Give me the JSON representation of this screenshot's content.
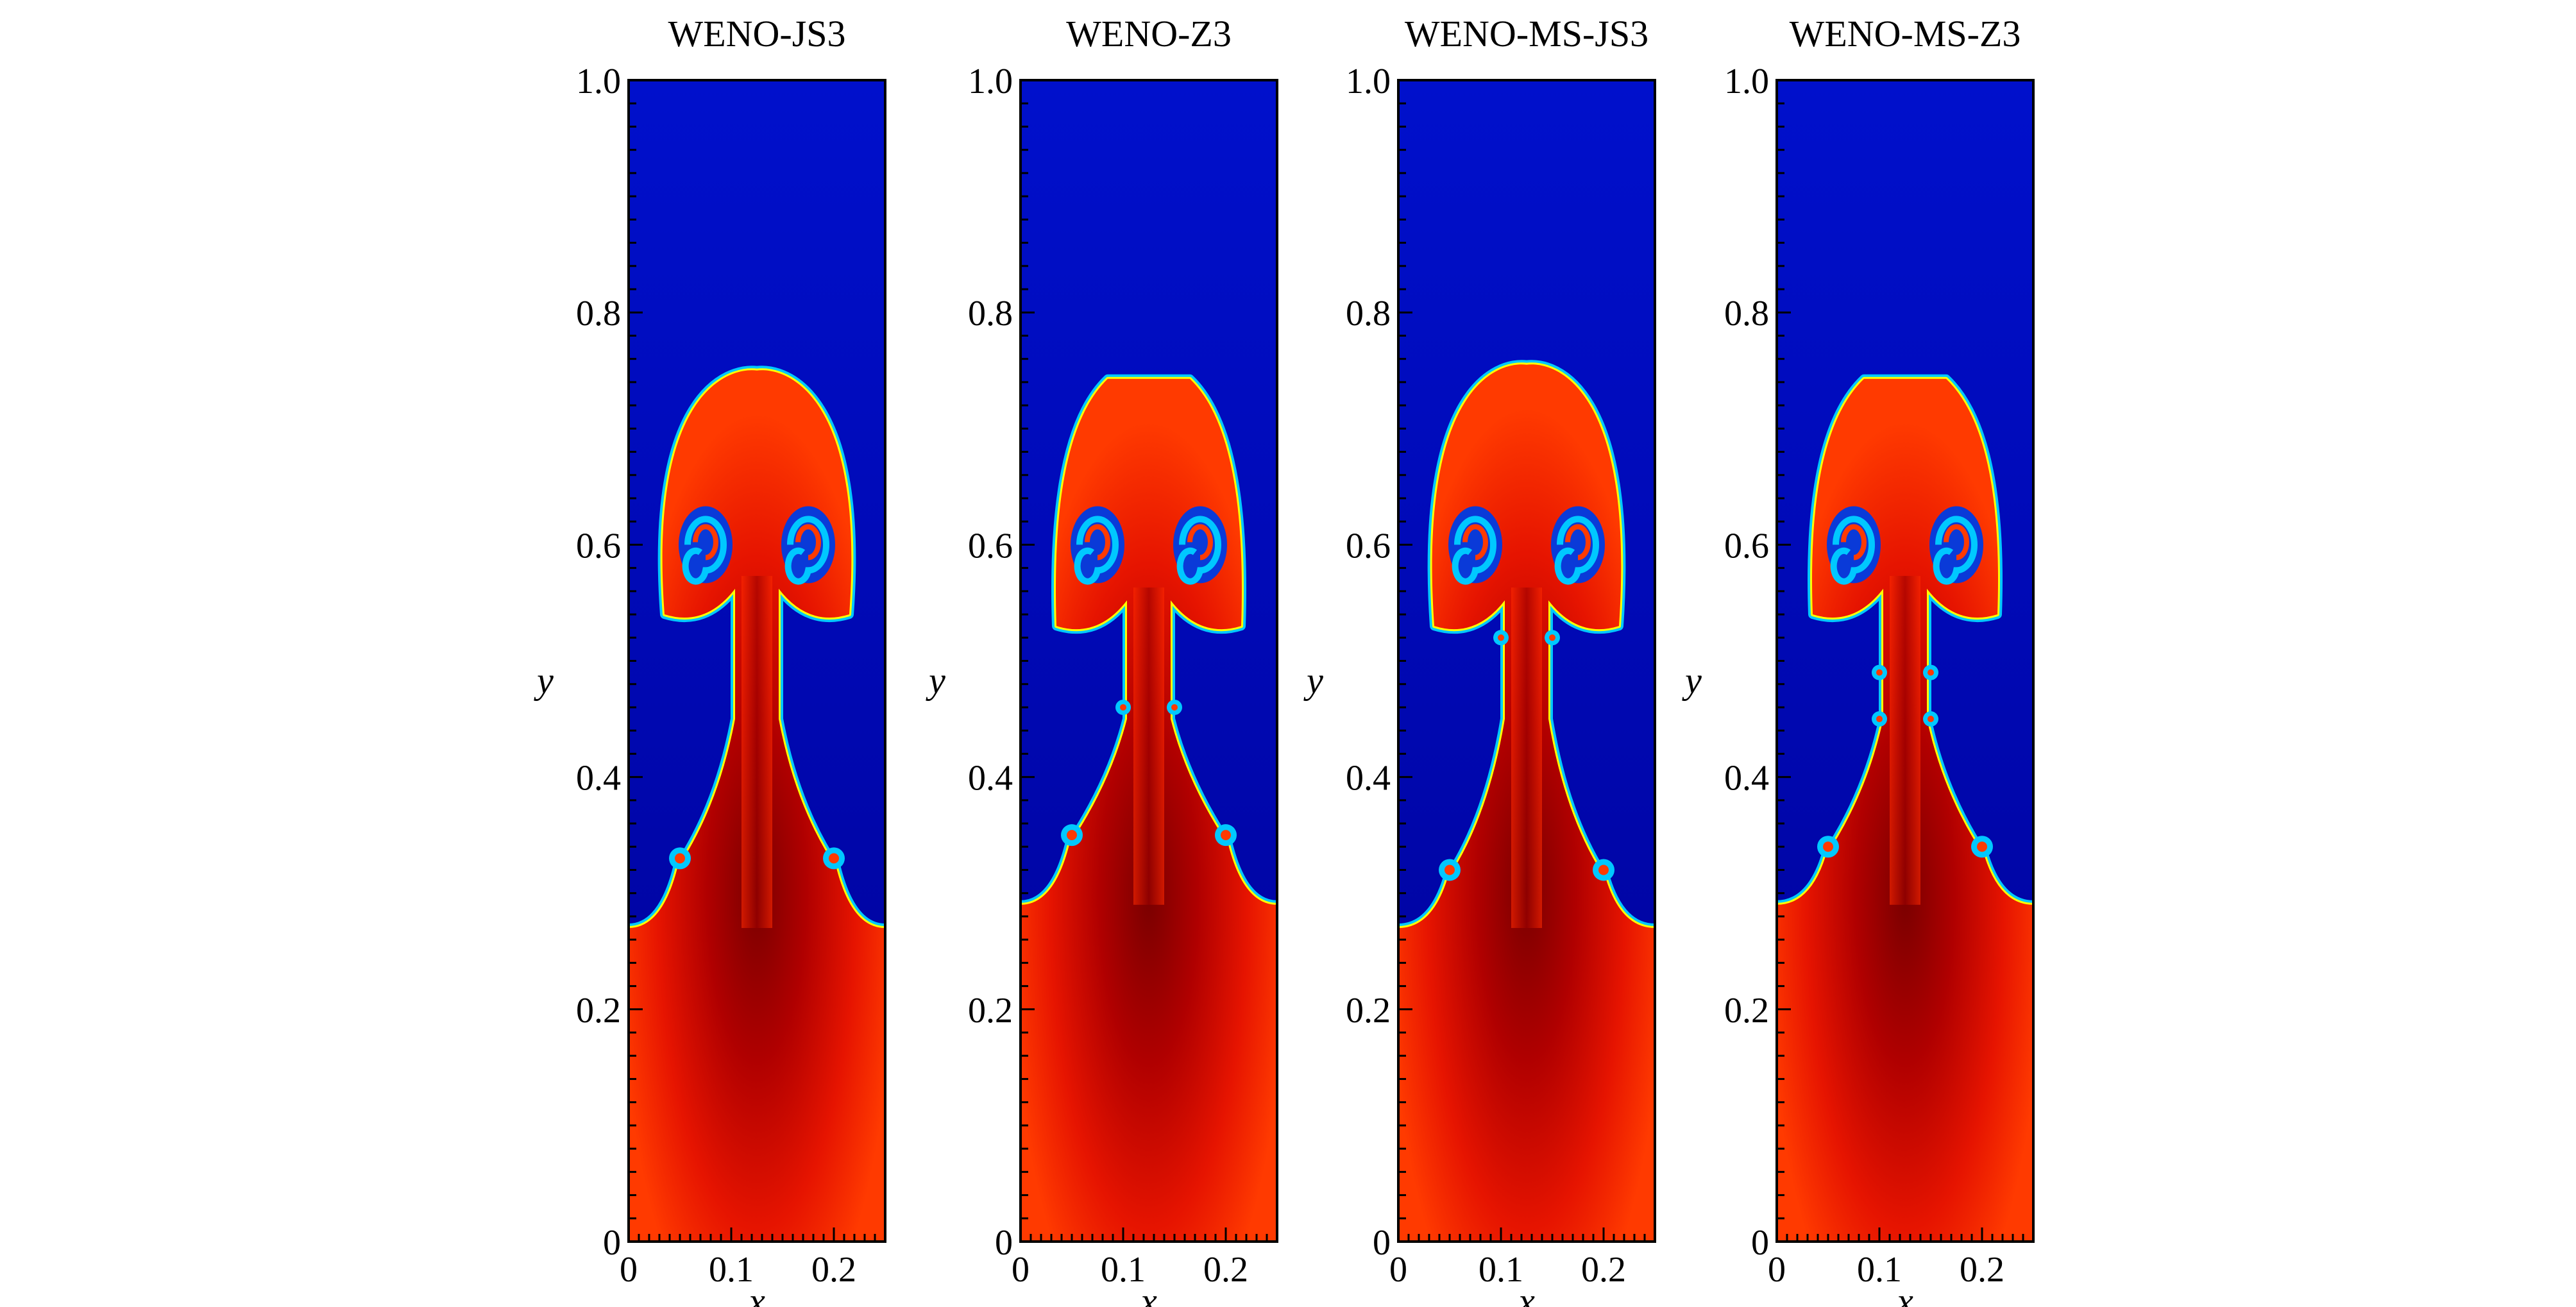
{
  "chart_data": [
    {
      "type": "heatmap",
      "title": "WENO-JS3",
      "xlabel": "x",
      "ylabel": "y",
      "xlim": [
        0,
        0.25
      ],
      "ylim": [
        0,
        1.0
      ],
      "xticks": [
        "0",
        "0.1",
        "0.2"
      ],
      "yticks": [
        "0",
        "0.2",
        "0.4",
        "0.6",
        "0.8",
        "1.0"
      ],
      "interface": {
        "flat_level": 0.27,
        "plume_tip": 0.75,
        "tip_shape": "rounded",
        "cap_bottom": 0.54,
        "small_rolls": [
          0.33
        ],
        "stem_rolls": []
      }
    },
    {
      "type": "heatmap",
      "title": "WENO-Z3",
      "xlabel": "x",
      "ylabel": "y",
      "xlim": [
        0,
        0.25
      ],
      "ylim": [
        0,
        1.0
      ],
      "xticks": [
        "0",
        "0.1",
        "0.2"
      ],
      "yticks": [
        "0",
        "0.2",
        "0.4",
        "0.6",
        "0.8",
        "1.0"
      ],
      "interface": {
        "flat_level": 0.29,
        "plume_tip": 0.745,
        "tip_shape": "flat",
        "cap_bottom": 0.53,
        "small_rolls": [
          0.35
        ],
        "stem_rolls": [
          0.46
        ]
      }
    },
    {
      "type": "heatmap",
      "title": "WENO-MS-JS3",
      "xlabel": "x",
      "ylabel": "y",
      "xlim": [
        0,
        0.25
      ],
      "ylim": [
        0,
        1.0
      ],
      "xticks": [
        "0",
        "0.1",
        "0.2"
      ],
      "yticks": [
        "0",
        "0.2",
        "0.4",
        "0.6",
        "0.8",
        "1.0"
      ],
      "interface": {
        "flat_level": 0.27,
        "plume_tip": 0.755,
        "tip_shape": "rounded",
        "cap_bottom": 0.53,
        "small_rolls": [
          0.32
        ],
        "stem_rolls": [
          0.52
        ]
      }
    },
    {
      "type": "heatmap",
      "title": "WENO-MS-Z3",
      "xlabel": "x",
      "ylabel": "y",
      "xlim": [
        0,
        0.25
      ],
      "ylim": [
        0,
        1.0
      ],
      "xticks": [
        "0",
        "0.1",
        "0.2"
      ],
      "yticks": [
        "0",
        "0.2",
        "0.4",
        "0.6",
        "0.8",
        "1.0"
      ],
      "interface": {
        "flat_level": 0.29,
        "plume_tip": 0.745,
        "tip_shape": "flat",
        "cap_bottom": 0.54,
        "small_rolls": [
          0.34
        ],
        "stem_rolls": [
          0.45,
          0.49
        ]
      }
    }
  ],
  "colors": {
    "heavy_fluid_core": "#800000",
    "heavy_fluid": "#ff2800",
    "heavy_fluid_edge": "#ff5a00",
    "light_fluid_top": "#0000c8",
    "light_fluid_bottom": "#000096",
    "interface_band": "#00c8ff",
    "interface_band_outer": "#ffff00"
  }
}
